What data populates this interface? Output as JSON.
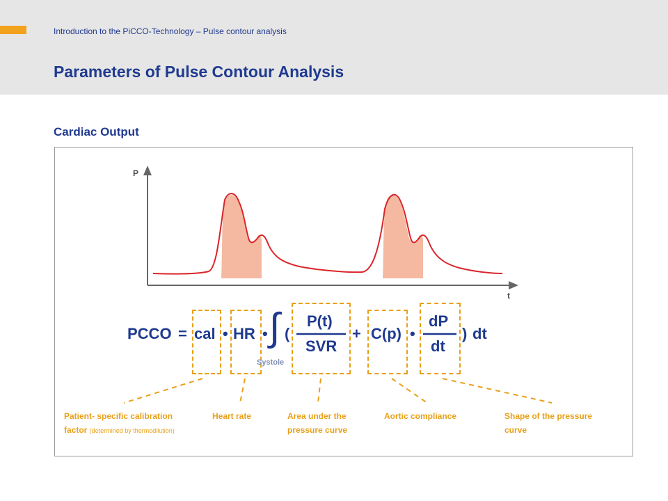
{
  "header": {
    "subtitle": "Introduction to the PiCCO-Technology – Pulse contour analysis",
    "title": "Parameters of Pulse Contour Analysis"
  },
  "section_title": "Cardiac Output",
  "graph": {
    "y_label": "P",
    "x_label": "t",
    "integral_label": "Systole"
  },
  "formula": {
    "lhs": "PCCO",
    "equals": "=",
    "cal": "cal",
    "dot1": "•",
    "hr": "HR",
    "dot2": "•",
    "integral": "∫",
    "open_paren": "(",
    "pt_numerator": "P(t)",
    "svr_denominator": "SVR",
    "plus": "+",
    "cp": "C(p)",
    "dot3": "•",
    "dp_numerator": "dP",
    "dt_denominator": "dt",
    "close_paren": ")",
    "dt_tail": "dt"
  },
  "captions": {
    "calibration_line1": "Patient- specific calibration",
    "calibration_line2_bold": "factor",
    "calibration_line2_small": "(determined by thermodilution)",
    "heart_rate": "Heart rate",
    "area_line1": "Area under the",
    "area_line2": "pressure curve",
    "compliance": "Aortic compliance",
    "shape_line1": "Shape of the pressure",
    "shape_line2": "curve"
  },
  "colors": {
    "brand_blue": "#1f3a8f",
    "accent_orange": "#f2a31d",
    "dash_orange": "#e8a01a",
    "curve_red": "#d9262b",
    "area_fill": "#f4b9a0"
  }
}
